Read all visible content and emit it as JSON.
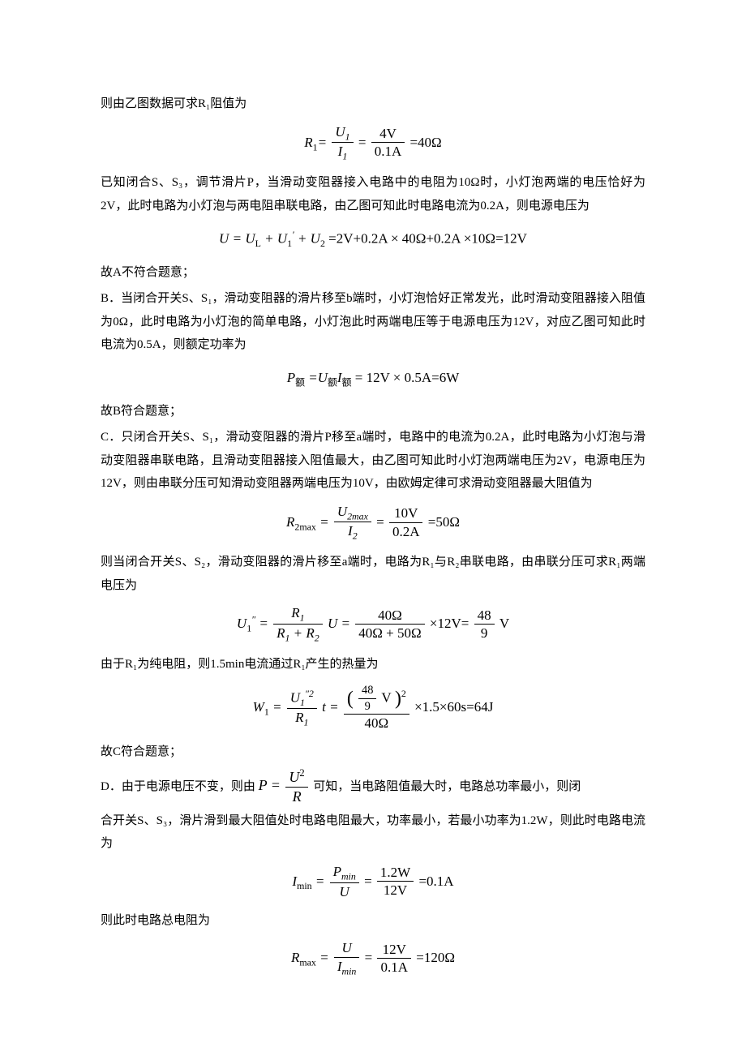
{
  "p1": "则由乙图数据可求R₁阻值为",
  "f1_lhs": "R",
  "f1_sub1": "1",
  "f1_eq": "=",
  "f1_frac1_num": "U",
  "f1_frac1_num_sub": "1",
  "f1_frac1_den": "I",
  "f1_frac1_den_sub": "1",
  "f1_frac2_num": "4V",
  "f1_frac2_den": "0.1A",
  "f1_result": "=40Ω",
  "p2": "已知闭合S、S₃，调节滑片P，当滑动变阻器接入电路中的电阻为10Ω时，小灯泡两端的电压恰好为2V，此时电路为小灯泡与两电阻串联电路，由乙图可知此时电路电流为0.2A，则电源电压为",
  "f2": "U = U_L + U_1' + U_2 = 2V + 0.2A × 40Ω + 0.2A × 10Ω = 12V",
  "f2_html": true,
  "p3": "故A不符合题意；",
  "p4": "B．当闭合开关S、S₁，滑动变阻器的滑片移至b端时，小灯泡恰好正常发光，此时滑动变阻器接入阻值为0Ω，此时电路为小灯泡的简单电路，小灯泡此时两端电压等于电源电压为12V，对应乙图可知此时电流为0.5A，则额定功率为",
  "f3": "P_额 = U_额 I_额 = 12V × 0.5A = 6W",
  "p5": "故B符合题意；",
  "p6": "C．只闭合开关S、S₁，滑动变阻器的滑片P移至a端时，电路中的电流为0.2A，此时电路为小灯泡与滑动变阻器串联电路，且滑动变阻器接入阻值最大，由乙图可知此时小灯泡两端电压为2V，电源电压为12V，则由串联分压可知滑动变阻器两端电压为10V，由欧姆定律可求滑动变阻器最大阻值为",
  "f4_lhs": "R",
  "f4_lsub": "2max",
  "f4_frac1_num": "U",
  "f4_frac1_num_sub": "2max",
  "f4_frac1_den": "I",
  "f4_frac1_den_sub": "2",
  "f4_frac2_num": "10V",
  "f4_frac2_den": "0.2A",
  "f4_result": "=50Ω",
  "p7": "则当闭合开关S、S₂，滑动变阻器的滑片移至a端时，电路为R₁与R₂串联电路，由串联分压可求R₁两端电压为",
  "f5_lhs": "U",
  "f5_lsub": "1",
  "f5_lsup": "″",
  "f5_frac1_num": "R",
  "f5_frac1_num_sub": "1",
  "f5_frac1_den_a": "R",
  "f5_frac1_den_a_sub": "1",
  "f5_frac1_den_plus": " + ",
  "f5_frac1_den_b": "R",
  "f5_frac1_den_b_sub": "2",
  "f5_mid": "U = ",
  "f5_frac2_num": "40Ω",
  "f5_frac2_den": "40Ω + 50Ω",
  "f5_tail": "×12V=",
  "f5_frac3_num": "48",
  "f5_frac3_den": "9",
  "f5_unit": " V",
  "p8": "由于R₁为纯电阻，则1.5min电流通过R₁产生的热量为",
  "f6_lhs": "W",
  "f6_lsub": "1",
  "f6_frac1_num": "U",
  "f6_frac1_num_sub": "1",
  "f6_frac1_num_sup": "″2",
  "f6_frac1_den": "R",
  "f6_frac1_den_sub": "1",
  "f6_mid": "t = ",
  "f6_big_num_frac_num": "48",
  "f6_big_num_frac_den": "9",
  "f6_big_num_unit": " V",
  "f6_big_num_sup": "2",
  "f6_big_den": "40Ω",
  "f6_tail": "×1.5×60s=64J",
  "p9": "故C符合题意；",
  "p10_pre": "D．由于电源电压不变，则由",
  "p10_f_lhs": "P = ",
  "p10_f_num": "U",
  "p10_f_num_sup": "2",
  "p10_f_den": "R",
  "p10_post": "可知，当电路阻值最大时，电路总功率最小，则闭",
  "p10b": "合开关S、S₃，滑片滑到最大阻值处时电路电阻最大，功率最小，若最小功率为1.2W，则此时电路电流为",
  "f7_lhs": "I",
  "f7_lsub": "min",
  "f7_frac1_num": "P",
  "f7_frac1_num_sub": "min",
  "f7_frac1_den": "U",
  "f7_frac2_num": "1.2W",
  "f7_frac2_den": "12V",
  "f7_result": "=0.1A",
  "p11": "则此时电路总电阻为",
  "f8_lhs": "R",
  "f8_lsub": "max",
  "f8_frac1_num": "U",
  "f8_frac1_den": "I",
  "f8_frac1_den_sub": "min",
  "f8_frac2_num": "12V",
  "f8_frac2_den": "0.1A",
  "f8_result": "=120Ω"
}
